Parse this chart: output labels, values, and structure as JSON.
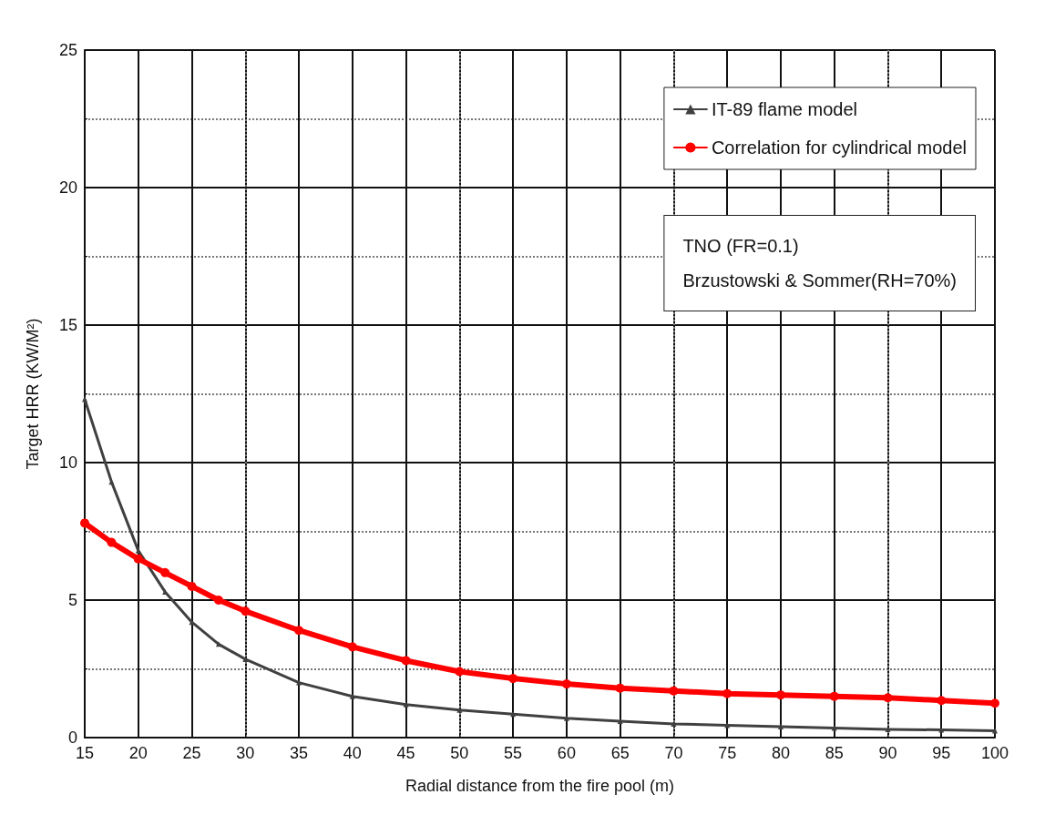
{
  "chart_data": {
    "type": "line",
    "xlabel": "Radial distance from the fire pool (m)",
    "ylabel": "Target HRR (KW/M²)",
    "xlim": [
      15,
      100
    ],
    "xticks": [
      15,
      20,
      25,
      30,
      35,
      40,
      45,
      50,
      55,
      60,
      65,
      70,
      75,
      80,
      85,
      90,
      95,
      100
    ],
    "ylim": [
      0,
      25
    ],
    "yticks": [
      0,
      5,
      10,
      15,
      20,
      25
    ],
    "grid": true,
    "legend": "top right",
    "annotations": [
      "TNO (FR=0.1)",
      "Brzustowski & Sommer(RH=70%)"
    ],
    "x": [
      15,
      17.5,
      20,
      22.5,
      25,
      27.5,
      30,
      35,
      40,
      45,
      50,
      55,
      60,
      65,
      70,
      75,
      80,
      85,
      90,
      95,
      100
    ],
    "series": [
      {
        "name": "IT-89 flame model",
        "color": "#404040",
        "marker": "triangle",
        "values": [
          12.3,
          9.3,
          6.8,
          5.3,
          4.2,
          3.4,
          2.85,
          2.0,
          1.5,
          1.2,
          1.0,
          0.85,
          0.7,
          0.6,
          0.5,
          0.45,
          0.4,
          0.35,
          0.3,
          0.28,
          0.25
        ]
      },
      {
        "name": "Correlation for cylindrical model",
        "color": "#ff0000",
        "marker": "circle",
        "values": [
          7.8,
          7.1,
          6.5,
          6.0,
          5.5,
          5.0,
          4.6,
          3.9,
          3.3,
          2.8,
          2.4,
          2.15,
          1.95,
          1.8,
          1.7,
          1.6,
          1.55,
          1.5,
          1.45,
          1.35,
          1.25
        ]
      }
    ]
  }
}
